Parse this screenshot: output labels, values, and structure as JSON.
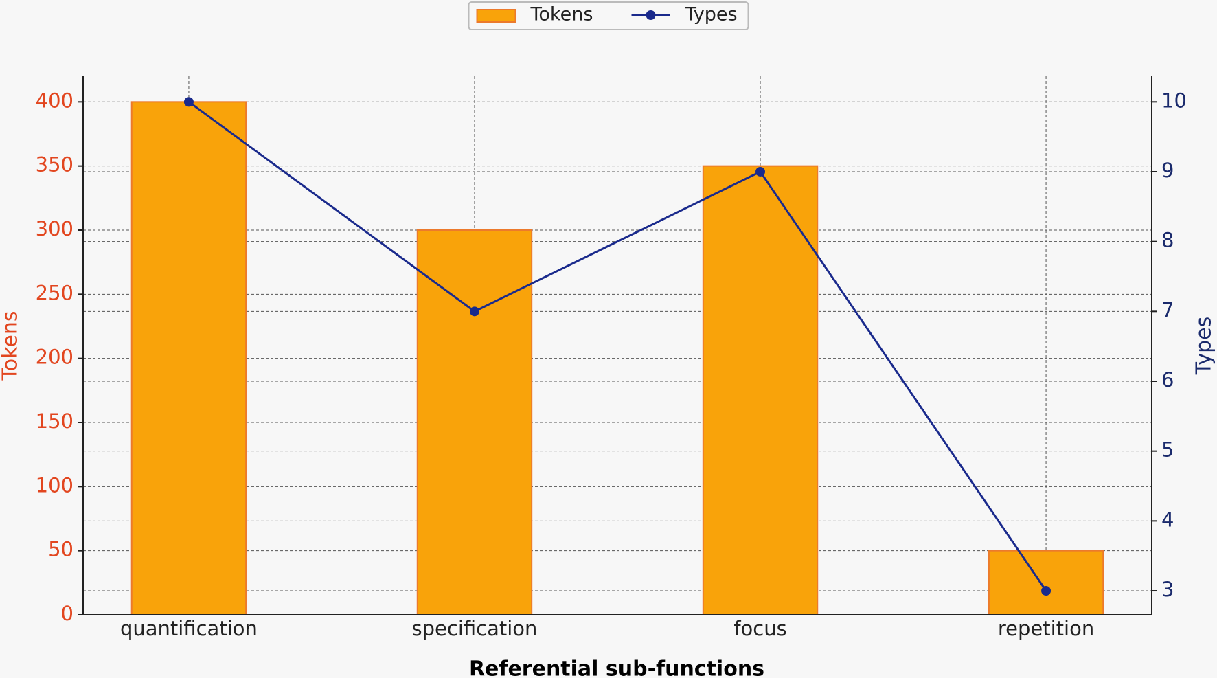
{
  "chart_data": {
    "type": "bar_line",
    "xlabel": "Referential sub-functions",
    "ylabel": "Tokens",
    "y2label": "Types",
    "categories": [
      "quantification",
      "specification",
      "focus",
      "repetition"
    ],
    "series": [
      {
        "name": "Tokens",
        "type": "bar",
        "color": "#f9a30a",
        "edge": "#ec7a2c",
        "values": [
          400,
          300,
          350,
          50
        ]
      },
      {
        "name": "Types",
        "type": "line",
        "axis": "y2",
        "color": "#1a2a8c",
        "values": [
          10,
          7,
          9,
          3
        ]
      }
    ],
    "ylim": [
      0,
      420
    ],
    "yticks": [
      0,
      50,
      100,
      150,
      200,
      250,
      300,
      350,
      400
    ],
    "y_color": "#e2461f",
    "y2lim": [
      2.656,
      10.367
    ],
    "y2ticks": [
      3,
      4,
      5,
      6,
      7,
      8,
      9,
      10
    ],
    "y2_color": "#1a2a6c",
    "grid": true,
    "legend": "upper center"
  }
}
